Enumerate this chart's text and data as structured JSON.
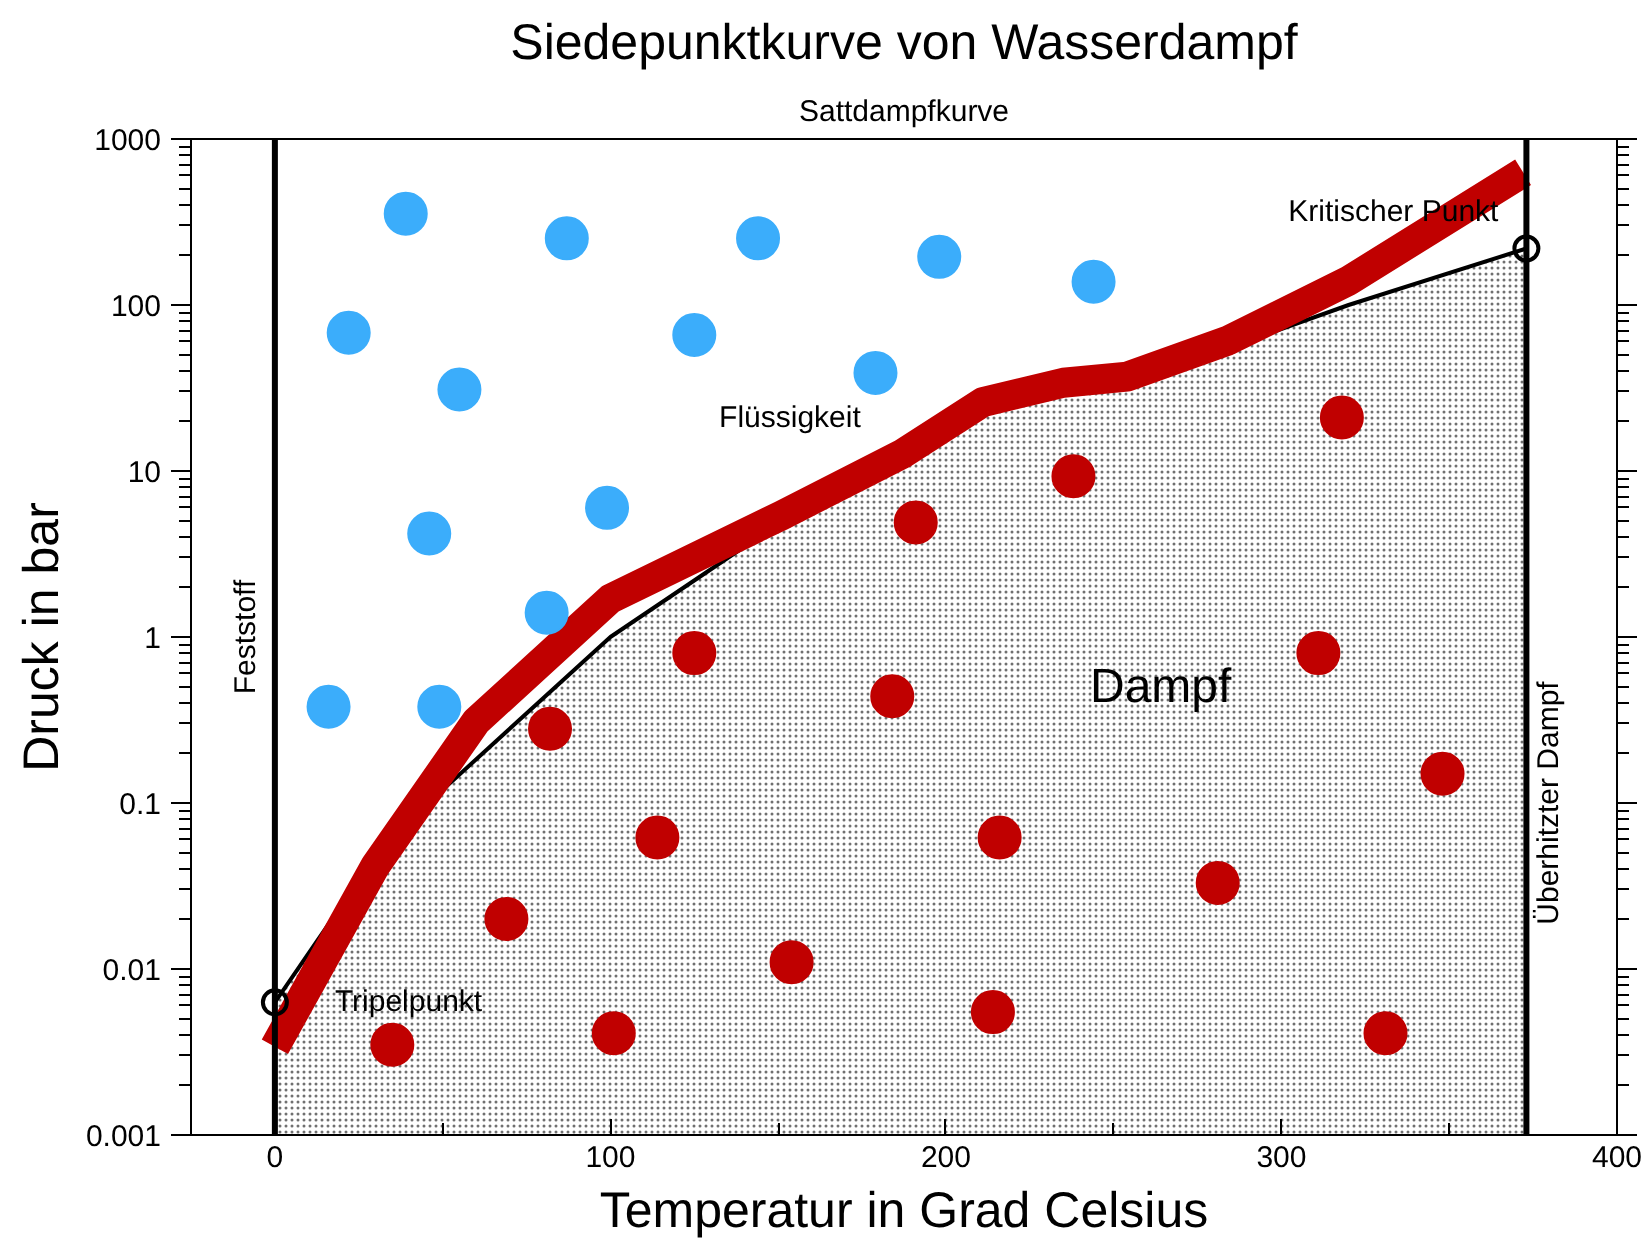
{
  "chart_data": {
    "type": "line",
    "title": "Siedepunktkurve von Wasserdampf",
    "subtitle": "Sattdampfkurve",
    "xlabel": "Temperatur in Grad Celsius",
    "ylabel": "Druck in bar",
    "log": "y",
    "xlim": [
      -25,
      400
    ],
    "xticks": [
      0,
      {
        "value": 50,
        "label": null
      },
      100,
      {
        "value": 150,
        "label": null
      },
      200,
      {
        "value": 250,
        "label": null
      },
      300,
      {
        "value": 350,
        "label": null
      },
      400
    ],
    "ylim": [
      0.001,
      1000
    ],
    "yticks": [
      {
        "value": 0.001,
        "label": "0.001"
      },
      {
        "value": 0.01,
        "label": "0.01"
      },
      {
        "value": 0.1,
        "label": "0.1"
      },
      1,
      10,
      100,
      1000
    ],
    "series": [
      {
        "type": "area",
        "color": "#000000",
        "x": [
          0,
          24,
          50,
          100,
          150,
          187,
          211,
          235,
          254,
          284,
          320,
          373
        ],
        "values": [
          0.0063,
          0.032,
          0.12,
          1.0,
          4.8,
          11,
          22,
          31,
          36,
          55,
          100,
          219
        ]
      },
      {
        "color": "#c00000",
        "x": [
          0,
          30,
          60,
          100,
          151,
          187,
          211,
          235,
          254,
          284,
          320,
          372
        ],
        "values": [
          0.0034,
          0.042,
          0.31,
          1.7,
          5.4,
          12.7,
          26,
          34,
          37,
          61,
          140,
          630
        ]
      },
      {
        "type": "scatter",
        "marker": "circle",
        "color": "#3badfb",
        "x": [
          39,
          22,
          87,
          144,
          198,
          244,
          125,
          55,
          179,
          99,
          46,
          81,
          16,
          49
        ],
        "values": [
          355,
          68,
          252,
          252,
          195,
          138,
          66,
          31,
          39,
          6,
          4.2,
          1.4,
          0.38,
          0.38
        ]
      },
      {
        "type": "scatter",
        "marker": "circle",
        "color": "#c00000",
        "x": [
          318,
          238,
          191,
          125,
          184,
          311,
          82,
          348,
          114,
          216,
          281,
          69,
          154,
          214,
          331,
          101,
          35
        ],
        "values": [
          21,
          9.3,
          4.9,
          0.8,
          0.44,
          0.8,
          0.28,
          0.15,
          0.062,
          0.062,
          0.033,
          0.02,
          0.011,
          0.0055,
          0.0041,
          0.0041,
          0.0035
        ]
      }
    ],
    "ref_lines": [
      {
        "axis": "x",
        "value": 0,
        "label": "Feststoff",
        "color": "#000000"
      },
      {
        "axis": "x",
        "value": 373,
        "label": "Überhitzter Dampf",
        "color": "#000000"
      }
    ],
    "annotations": [
      "Flüssigkeit",
      "Dampf",
      {
        "text": "Tripelpunkt",
        "x": 0,
        "y": 0.0063
      },
      {
        "text": "Kritischer Punkt",
        "x": 373,
        "y": 219
      }
    ]
  }
}
